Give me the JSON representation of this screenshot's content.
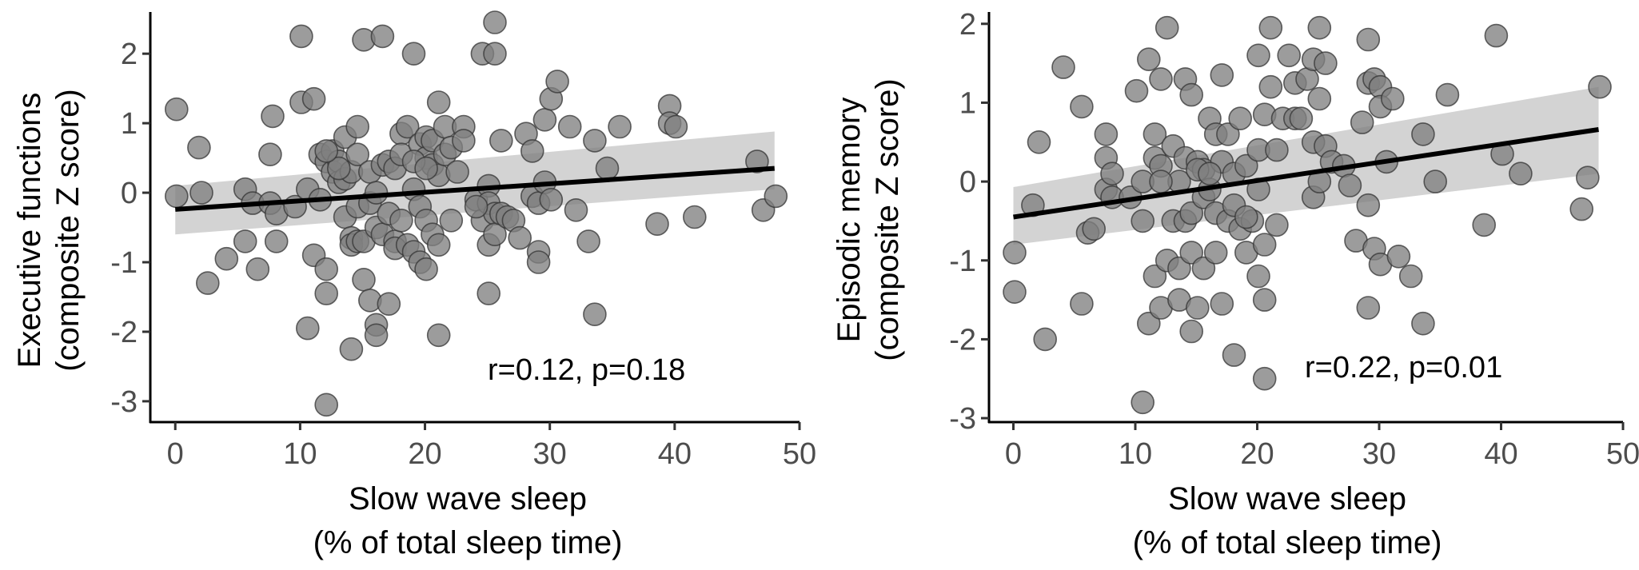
{
  "chart_data": [
    {
      "type": "scatter",
      "xlabel": [
        "Slow wave sleep",
        "(% of total sleep time)"
      ],
      "ylabel": [
        "Executive functions",
        "(composite Z score)"
      ],
      "annotation": "r=0.12, p=0.18",
      "xlim": [
        -2,
        50
      ],
      "ylim": [
        -3.3,
        2.6
      ],
      "xticks": [
        0,
        10,
        20,
        30,
        40,
        50
      ],
      "yticks": [
        -3,
        -2,
        -1,
        0,
        1,
        2
      ],
      "grid": false,
      "point_color": "#808080",
      "line_color": "#000000",
      "band_color": "#d3d3d3",
      "fit": {
        "x": [
          0,
          48
        ],
        "y": [
          -0.24,
          0.35
        ],
        "ci_low": [
          -0.6,
          0.05
        ],
        "ci_high": [
          0.1,
          0.88
        ]
      },
      "points": [
        [
          0.1,
          1.2
        ],
        [
          0.1,
          -0.05
        ],
        [
          1.9,
          0.65
        ],
        [
          2.1,
          0.0
        ],
        [
          2.6,
          -1.3
        ],
        [
          4.1,
          -0.95
        ],
        [
          5.6,
          0.05
        ],
        [
          5.6,
          -0.7
        ],
        [
          6.2,
          -0.15
        ],
        [
          6.6,
          -1.1
        ],
        [
          7.6,
          0.55
        ],
        [
          7.6,
          -0.15
        ],
        [
          7.8,
          1.1
        ],
        [
          8.1,
          -0.3
        ],
        [
          8.1,
          -0.7
        ],
        [
          9.6,
          -0.2
        ],
        [
          10.1,
          2.25
        ],
        [
          10.1,
          1.3
        ],
        [
          10.6,
          -1.95
        ],
        [
          10.6,
          0.05
        ],
        [
          11.1,
          1.35
        ],
        [
          11.1,
          -0.9
        ],
        [
          11.6,
          0.55
        ],
        [
          11.6,
          -0.1
        ],
        [
          12.1,
          0.45
        ],
        [
          12.1,
          -1.1
        ],
        [
          12.1,
          -1.45
        ],
        [
          12.1,
          -3.05
        ],
        [
          12.6,
          0.6
        ],
        [
          12.6,
          0.3
        ],
        [
          13.1,
          0.45
        ],
        [
          13.1,
          0.15
        ],
        [
          13.6,
          0.8
        ],
        [
          13.6,
          0.2
        ],
        [
          13.6,
          -0.35
        ],
        [
          14.1,
          0.3
        ],
        [
          14.1,
          -0.65
        ],
        [
          14.1,
          -0.75
        ],
        [
          14.1,
          -2.25
        ],
        [
          14.6,
          0.95
        ],
        [
          14.6,
          0.55
        ],
        [
          14.6,
          -0.7
        ],
        [
          14.6,
          -0.2
        ],
        [
          15.1,
          2.2
        ],
        [
          15.1,
          -0.7
        ],
        [
          15.1,
          -1.25
        ],
        [
          15.6,
          0.3
        ],
        [
          15.6,
          -0.15
        ],
        [
          15.6,
          -1.55
        ],
        [
          16.1,
          0.0
        ],
        [
          16.1,
          -0.5
        ],
        [
          16.1,
          -1.9
        ],
        [
          16.1,
          -2.05
        ],
        [
          16.6,
          2.25
        ],
        [
          16.6,
          0.4
        ],
        [
          16.6,
          -0.6
        ],
        [
          17.1,
          0.45
        ],
        [
          17.1,
          -0.3
        ],
        [
          17.1,
          -1.6
        ],
        [
          17.6,
          0.35
        ],
        [
          17.6,
          -0.7
        ],
        [
          17.6,
          -0.8
        ],
        [
          18.1,
          0.85
        ],
        [
          18.1,
          0.55
        ],
        [
          18.1,
          -0.4
        ],
        [
          18.6,
          0.95
        ],
        [
          18.6,
          -0.75
        ],
        [
          19.1,
          2.0
        ],
        [
          19.1,
          0.05
        ],
        [
          19.1,
          -0.85
        ],
        [
          19.6,
          0.7
        ],
        [
          19.6,
          -0.2
        ],
        [
          19.6,
          -1.0
        ],
        [
          20.1,
          0.8
        ],
        [
          20.1,
          0.5
        ],
        [
          20.1,
          -0.4
        ],
        [
          20.1,
          -1.1
        ],
        [
          20.6,
          0.75
        ],
        [
          20.6,
          0.4
        ],
        [
          20.6,
          -0.6
        ],
        [
          21.1,
          1.3
        ],
        [
          21.1,
          0.25
        ],
        [
          21.1,
          -0.75
        ],
        [
          21.1,
          -2.05
        ],
        [
          21.6,
          0.95
        ],
        [
          21.6,
          0.55
        ],
        [
          22.1,
          0.65
        ],
        [
          22.1,
          -0.4
        ],
        [
          22.6,
          0.3
        ],
        [
          23.1,
          0.95
        ],
        [
          23.1,
          0.75
        ],
        [
          24.1,
          -0.1
        ],
        [
          24.6,
          2.0
        ],
        [
          24.6,
          -0.4
        ],
        [
          25.1,
          0.1
        ],
        [
          25.1,
          -0.15
        ],
        [
          25.1,
          -0.75
        ],
        [
          25.1,
          -1.45
        ],
        [
          25.6,
          2.45
        ],
        [
          25.6,
          -0.3
        ],
        [
          25.6,
          -0.6
        ],
        [
          26.1,
          0.75
        ],
        [
          26.1,
          -0.3
        ],
        [
          26.6,
          -0.35
        ],
        [
          27.1,
          -0.4
        ],
        [
          27.6,
          -0.65
        ],
        [
          28.1,
          0.85
        ],
        [
          28.6,
          0.6
        ],
        [
          28.6,
          -0.05
        ],
        [
          29.1,
          -0.15
        ],
        [
          29.1,
          -0.85
        ],
        [
          29.1,
          -1.0
        ],
        [
          29.6,
          1.05
        ],
        [
          29.6,
          0.15
        ],
        [
          30.1,
          1.35
        ],
        [
          30.1,
          -0.1
        ],
        [
          30.6,
          1.6
        ],
        [
          31.6,
          0.95
        ],
        [
          32.1,
          -0.25
        ],
        [
          33.1,
          -0.7
        ],
        [
          33.6,
          0.75
        ],
        [
          33.6,
          -1.75
        ],
        [
          34.6,
          0.35
        ],
        [
          35.6,
          0.95
        ],
        [
          38.6,
          -0.45
        ],
        [
          39.6,
          1.25
        ],
        [
          39.6,
          1.0
        ],
        [
          40.1,
          0.95
        ],
        [
          41.6,
          -0.35
        ],
        [
          46.6,
          0.45
        ],
        [
          47.1,
          -0.25
        ],
        [
          48.1,
          -0.05
        ],
        [
          13.1,
          0.35
        ],
        [
          24.1,
          -0.2
        ],
        [
          25.6,
          2.0
        ],
        [
          19.1,
          0.45
        ],
        [
          20.1,
          0.35
        ],
        [
          12.1,
          0.6
        ]
      ]
    },
    {
      "type": "scatter",
      "xlabel": [
        "Slow wave sleep",
        "(% of total sleep time)"
      ],
      "ylabel": [
        "Episodic memory",
        "(composite Z score)"
      ],
      "annotation": "r=0.22, p=0.01",
      "xlim": [
        -2,
        50
      ],
      "ylim": [
        -3.05,
        2.15
      ],
      "xticks": [
        0,
        10,
        20,
        30,
        40,
        50
      ],
      "yticks": [
        -3,
        -2,
        -1,
        0,
        1,
        2
      ],
      "grid": false,
      "point_color": "#808080",
      "line_color": "#000000",
      "band_color": "#d3d3d3",
      "fit": {
        "x": [
          0,
          48
        ],
        "y": [
          -0.45,
          0.66
        ],
        "ci_low": [
          -0.8,
          0.1
        ],
        "ci_high": [
          -0.07,
          1.2
        ]
      },
      "points": [
        [
          0.1,
          -0.9
        ],
        [
          0.1,
          -1.4
        ],
        [
          1.6,
          -0.3
        ],
        [
          2.1,
          0.5
        ],
        [
          2.6,
          -2.0
        ],
        [
          4.1,
          1.45
        ],
        [
          5.6,
          0.95
        ],
        [
          5.6,
          -1.55
        ],
        [
          6.1,
          -0.65
        ],
        [
          6.6,
          -0.6
        ],
        [
          7.6,
          0.3
        ],
        [
          7.6,
          0.6
        ],
        [
          7.6,
          -0.1
        ],
        [
          8.1,
          0.1
        ],
        [
          8.1,
          -0.2
        ],
        [
          9.6,
          -0.2
        ],
        [
          10.1,
          1.15
        ],
        [
          10.6,
          0.0
        ],
        [
          10.6,
          -0.5
        ],
        [
          10.6,
          -2.8
        ],
        [
          11.1,
          1.55
        ],
        [
          11.1,
          -1.8
        ],
        [
          11.6,
          0.6
        ],
        [
          11.6,
          0.3
        ],
        [
          11.6,
          -1.2
        ],
        [
          12.1,
          1.3
        ],
        [
          12.1,
          0.2
        ],
        [
          12.1,
          -1.6
        ],
        [
          12.6,
          1.95
        ],
        [
          12.6,
          -1.0
        ],
        [
          13.1,
          0.45
        ],
        [
          13.1,
          -0.5
        ],
        [
          13.6,
          0.0
        ],
        [
          13.6,
          -1.1
        ],
        [
          13.6,
          -1.5
        ],
        [
          14.1,
          1.3
        ],
        [
          14.1,
          0.3
        ],
        [
          14.1,
          -0.5
        ],
        [
          14.6,
          1.1
        ],
        [
          14.6,
          -0.4
        ],
        [
          14.6,
          -0.9
        ],
        [
          14.6,
          -1.9
        ],
        [
          15.1,
          0.25
        ],
        [
          15.1,
          -1.6
        ],
        [
          15.6,
          0.15
        ],
        [
          15.6,
          -0.2
        ],
        [
          15.6,
          -1.1
        ],
        [
          16.1,
          0.8
        ],
        [
          16.1,
          -0.1
        ],
        [
          16.6,
          0.6
        ],
        [
          16.6,
          -0.4
        ],
        [
          16.6,
          -0.9
        ],
        [
          17.1,
          1.35
        ],
        [
          17.1,
          0.25
        ],
        [
          17.1,
          -1.55
        ],
        [
          17.6,
          0.6
        ],
        [
          17.6,
          -0.5
        ],
        [
          18.1,
          0.1
        ],
        [
          18.1,
          -0.3
        ],
        [
          18.1,
          -2.2
        ],
        [
          18.6,
          0.8
        ],
        [
          18.6,
          -0.6
        ],
        [
          19.1,
          0.2
        ],
        [
          19.1,
          -0.9
        ],
        [
          19.6,
          -0.5
        ],
        [
          20.1,
          1.6
        ],
        [
          20.1,
          0.4
        ],
        [
          20.1,
          -0.1
        ],
        [
          20.1,
          -1.2
        ],
        [
          20.6,
          0.85
        ],
        [
          20.6,
          -0.8
        ],
        [
          20.6,
          -1.5
        ],
        [
          20.6,
          -2.5
        ],
        [
          21.1,
          1.95
        ],
        [
          21.1,
          1.2
        ],
        [
          21.6,
          0.4
        ],
        [
          21.6,
          -0.55
        ],
        [
          22.1,
          0.8
        ],
        [
          22.6,
          1.6
        ],
        [
          23.1,
          1.25
        ],
        [
          23.1,
          0.8
        ],
        [
          24.1,
          1.3
        ],
        [
          24.6,
          1.55
        ],
        [
          24.6,
          0.5
        ],
        [
          24.6,
          -0.2
        ],
        [
          25.1,
          1.95
        ],
        [
          25.1,
          1.05
        ],
        [
          25.1,
          0.0
        ],
        [
          25.6,
          1.5
        ],
        [
          25.6,
          0.45
        ],
        [
          26.1,
          0.25
        ],
        [
          27.1,
          0.2
        ],
        [
          27.6,
          -0.05
        ],
        [
          28.1,
          -0.75
        ],
        [
          28.6,
          0.75
        ],
        [
          29.1,
          1.8
        ],
        [
          29.1,
          1.25
        ],
        [
          29.1,
          -0.3
        ],
        [
          29.1,
          -1.6
        ],
        [
          29.6,
          1.3
        ],
        [
          29.6,
          -0.85
        ],
        [
          30.1,
          1.2
        ],
        [
          30.1,
          0.95
        ],
        [
          30.1,
          -1.05
        ],
        [
          30.6,
          0.25
        ],
        [
          31.1,
          1.05
        ],
        [
          31.6,
          -0.95
        ],
        [
          32.6,
          -1.2
        ],
        [
          33.6,
          0.6
        ],
        [
          33.6,
          -1.8
        ],
        [
          34.6,
          0.0
        ],
        [
          35.6,
          1.1
        ],
        [
          38.6,
          -0.55
        ],
        [
          39.6,
          1.85
        ],
        [
          40.1,
          0.35
        ],
        [
          41.6,
          0.1
        ],
        [
          46.6,
          -0.35
        ],
        [
          47.1,
          0.05
        ],
        [
          48.1,
          1.2
        ],
        [
          15.1,
          0.15
        ],
        [
          23.6,
          0.8
        ],
        [
          19.1,
          -0.45
        ],
        [
          16.1,
          0.1
        ],
        [
          12.1,
          0.0
        ]
      ]
    }
  ]
}
